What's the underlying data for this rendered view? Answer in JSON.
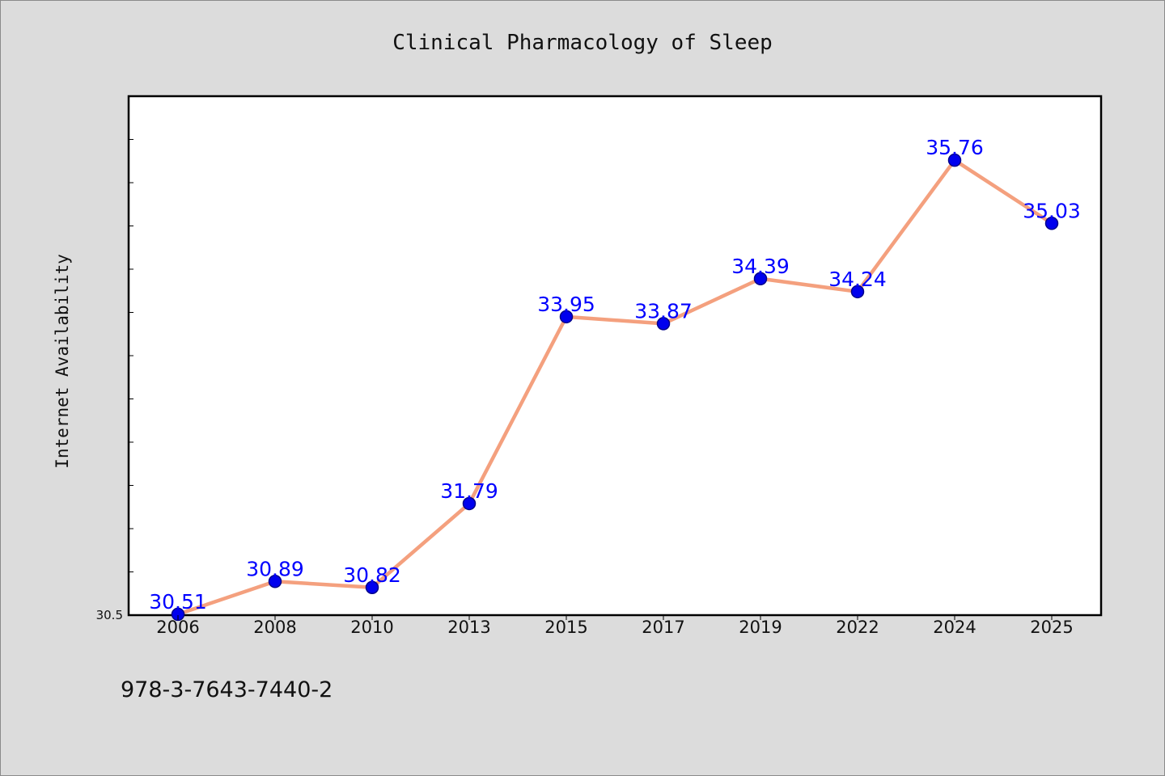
{
  "chart_data": {
    "type": "line",
    "title": "Clinical Pharmacology of Sleep",
    "xlabel": "",
    "ylabel": "Internet Availability",
    "categories": [
      "2006",
      "2008",
      "2010",
      "2013",
      "2015",
      "2017",
      "2019",
      "2022",
      "2024",
      "2025"
    ],
    "series": [
      {
        "values": [
          30.51,
          30.89,
          30.82,
          31.79,
          33.95,
          33.87,
          34.39,
          34.24,
          35.76,
          35.03
        ],
        "data_labels": [
          "30.51",
          "30.89",
          "30.82",
          "31.79",
          "33.95",
          "33.87",
          "34.39",
          "34.24",
          "35.76",
          "35.03"
        ]
      }
    ],
    "ylim": [
      30.5,
      36.5
    ],
    "yticks_labeled": [
      "30.5"
    ],
    "grid": false,
    "legend": "none",
    "colors": {
      "line": "#f4a07e",
      "marker": "#0000ee",
      "label": "#0000ff",
      "background": "#dcdcdc",
      "plot_bg": "#ffffff"
    }
  },
  "footer": {
    "isbn": "978-3-7643-7440-2"
  }
}
